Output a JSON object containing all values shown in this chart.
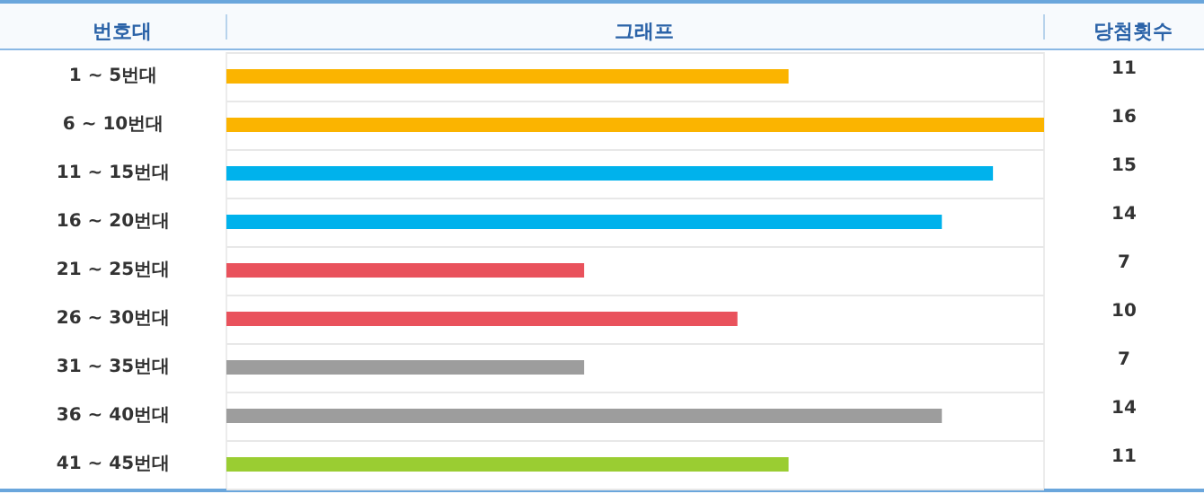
{
  "chart_data": {
    "type": "bar",
    "orientation": "horizontal",
    "title": "그래프",
    "ylabel": "번호대",
    "xlabel": "당첨횟수",
    "categories": [
      "1 ~ 5번대",
      "6 ~ 10번대",
      "11 ~ 15번대",
      "16 ~ 20번대",
      "21 ~ 25번대",
      "26 ~ 30번대",
      "31 ~ 35번대",
      "36 ~ 40번대",
      "41 ~ 45번대"
    ],
    "values": [
      11,
      16,
      15,
      14,
      7,
      10,
      7,
      14,
      11
    ],
    "colors": [
      "#fbb400",
      "#fbb400",
      "#00b2ec",
      "#00b2ec",
      "#e9525c",
      "#e9525c",
      "#9d9d9d",
      "#9d9d9d",
      "#9acd32"
    ],
    "xlim": [
      0,
      16
    ],
    "tick_labels": "y",
    "data_labels": true,
    "grid": "y"
  }
}
